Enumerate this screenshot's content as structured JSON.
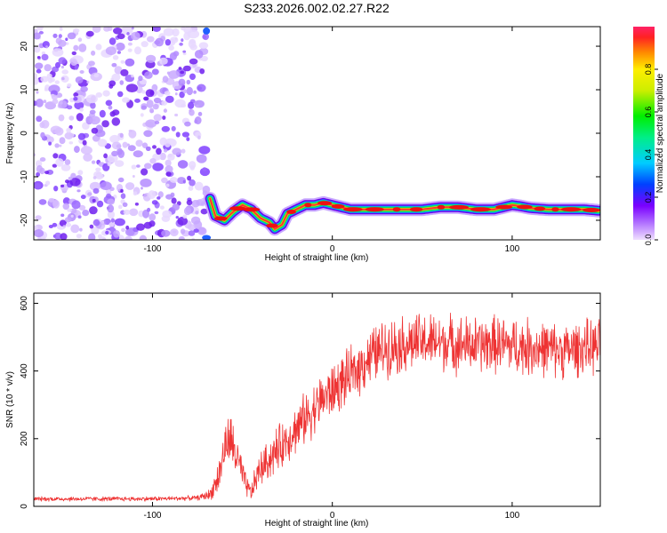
{
  "title": "S233.2026.002.02.27.R22",
  "chart_data": [
    {
      "type": "heatmap",
      "name": "spectrogram",
      "xlabel": "Height of straight line (km)",
      "ylabel": "Frequency (Hz)",
      "xlim": [
        -166,
        149
      ],
      "ylim": [
        -24.5,
        24.5
      ],
      "xticks": [
        -100,
        0,
        100
      ],
      "yticks": [
        -20,
        -10,
        0,
        10,
        20
      ],
      "noise_region_x": [
        -166,
        -70
      ],
      "carrier_track": {
        "x": [
          -68,
          -65,
          -60,
          -55,
          -50,
          -45,
          -40,
          -35,
          -32,
          -28,
          -25,
          -20,
          -15,
          -10,
          -5,
          0,
          10,
          20,
          30,
          40,
          50,
          60,
          70,
          80,
          90,
          100,
          105,
          110,
          120,
          130,
          140,
          148
        ],
        "freq": [
          -15,
          -19,
          -20,
          -18,
          -16.5,
          -17.5,
          -19.5,
          -20.5,
          -22,
          -21,
          -18.5,
          -17.5,
          -16.5,
          -16.5,
          -16,
          -16.5,
          -17.5,
          -17.5,
          -17.5,
          -17.5,
          -17.5,
          -17,
          -17,
          -17.5,
          -17.5,
          -16.5,
          -16.8,
          -17.2,
          -17.5,
          -17.5,
          -17.5,
          -17.8
        ]
      },
      "colorbar": {
        "label": "Normalized spectral amplitude",
        "ticks": [
          "0.0",
          "0.2",
          "0.4",
          "0.6",
          "0.8"
        ],
        "range": [
          0,
          1
        ]
      }
    },
    {
      "type": "line",
      "name": "snr",
      "xlabel": "Height of straight line (km)",
      "ylabel": "SNR (10 * v/v)",
      "xlim": [
        -166,
        149
      ],
      "ylim": [
        0,
        630
      ],
      "xticks": [
        -100,
        0,
        100
      ],
      "yticks": [
        0,
        200,
        400,
        600
      ],
      "color": "#ee3333",
      "x": [
        -166,
        -150,
        -130,
        -110,
        -90,
        -75,
        -68,
        -63,
        -60,
        -57,
        -54,
        -51,
        -48,
        -45,
        -42,
        -40,
        -35,
        -30,
        -25,
        -20,
        -15,
        -10,
        -5,
        0,
        5,
        10,
        15,
        20,
        25,
        30,
        40,
        50,
        60,
        70,
        80,
        90,
        100,
        110,
        120,
        130,
        140,
        149
      ],
      "values": [
        22,
        22,
        22,
        22,
        23,
        25,
        35,
        90,
        170,
        200,
        160,
        110,
        60,
        40,
        90,
        110,
        140,
        170,
        200,
        230,
        260,
        290,
        320,
        340,
        365,
        385,
        410,
        440,
        455,
        470,
        480,
        485,
        485,
        480,
        475,
        480,
        475,
        470,
        465,
        460,
        470,
        470
      ],
      "noise_amp": [
        8,
        8,
        8,
        8,
        8,
        8,
        20,
        60,
        80,
        90,
        90,
        60,
        40,
        30,
        60,
        60,
        70,
        80,
        80,
        85,
        90,
        90,
        90,
        95,
        95,
        95,
        95,
        100,
        100,
        100,
        100,
        100,
        100,
        100,
        100,
        100,
        100,
        100,
        95,
        95,
        95,
        95
      ]
    }
  ]
}
